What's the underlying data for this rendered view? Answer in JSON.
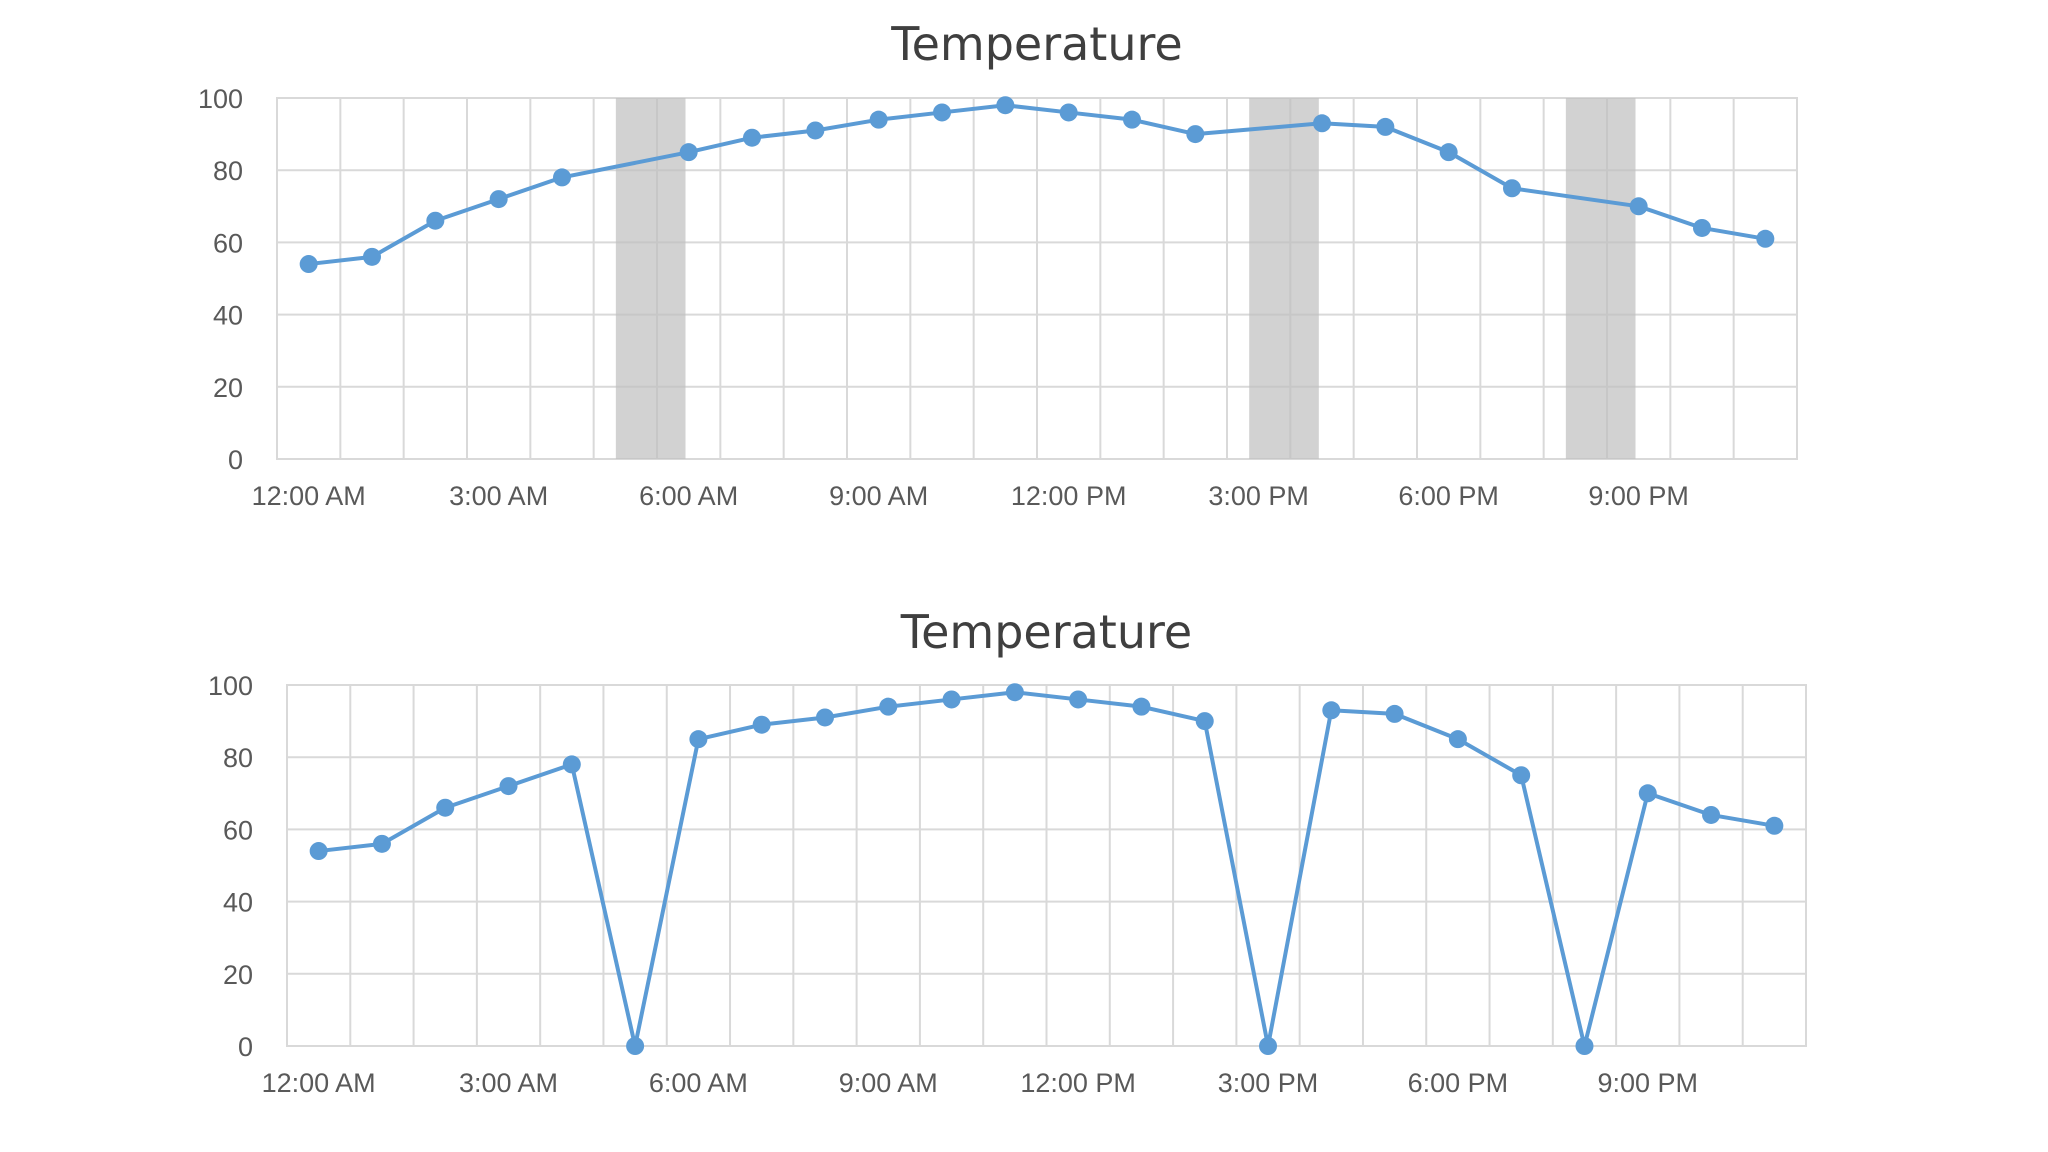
{
  "chart_data": [
    {
      "type": "line",
      "title": "Temperature",
      "xlabel": "",
      "ylabel": "",
      "ylim": [
        0,
        100
      ],
      "yticks": [
        0,
        20,
        40,
        60,
        80,
        100
      ],
      "xlim": [
        -0.5,
        23.5
      ],
      "x_tick_positions": [
        0,
        3,
        6,
        9,
        12,
        15,
        18,
        21
      ],
      "x_tick_labels": [
        "12:00 AM",
        "3:00 AM",
        "6:00 AM",
        "9:00 AM",
        "12:00 PM",
        "3:00 PM",
        "6:00 PM",
        "9:00 PM"
      ],
      "x_hours": [
        0,
        1,
        2,
        3,
        4,
        5,
        6,
        7,
        8,
        9,
        10,
        11,
        12,
        13,
        14,
        15,
        16,
        17,
        18,
        19,
        20,
        21,
        22,
        23
      ],
      "grid": true,
      "legend": false,
      "empty_cells_shown_as": "connect data points with line",
      "missing_hours": [
        5,
        15,
        20
      ],
      "series": [
        {
          "color": "#5b9bd5",
          "values": [
            54,
            56,
            66,
            72,
            78,
            null,
            85,
            89,
            91,
            94,
            96,
            98,
            96,
            94,
            90,
            null,
            93,
            92,
            85,
            75,
            null,
            70,
            64,
            61
          ]
        }
      ]
    },
    {
      "type": "line",
      "title": "Temperature",
      "xlabel": "",
      "ylabel": "",
      "ylim": [
        0,
        100
      ],
      "yticks": [
        0,
        20,
        40,
        60,
        80,
        100
      ],
      "xlim": [
        -0.5,
        23.5
      ],
      "x_tick_positions": [
        0,
        3,
        6,
        9,
        12,
        15,
        18,
        21
      ],
      "x_tick_labels": [
        "12:00 AM",
        "3:00 AM",
        "6:00 AM",
        "9:00 AM",
        "12:00 PM",
        "3:00 PM",
        "6:00 PM",
        "9:00 PM"
      ],
      "x_hours": [
        0,
        1,
        2,
        3,
        4,
        5,
        6,
        7,
        8,
        9,
        10,
        11,
        12,
        13,
        14,
        15,
        16,
        17,
        18,
        19,
        20,
        21,
        22,
        23
      ],
      "grid": true,
      "legend": false,
      "empty_cells_shown_as": "zero",
      "series": [
        {
          "color": "#5b9bd5",
          "values": [
            54,
            56,
            66,
            72,
            78,
            0,
            85,
            89,
            91,
            94,
            96,
            98,
            96,
            94,
            90,
            0,
            93,
            92,
            85,
            75,
            0,
            70,
            64,
            61
          ]
        }
      ]
    }
  ]
}
